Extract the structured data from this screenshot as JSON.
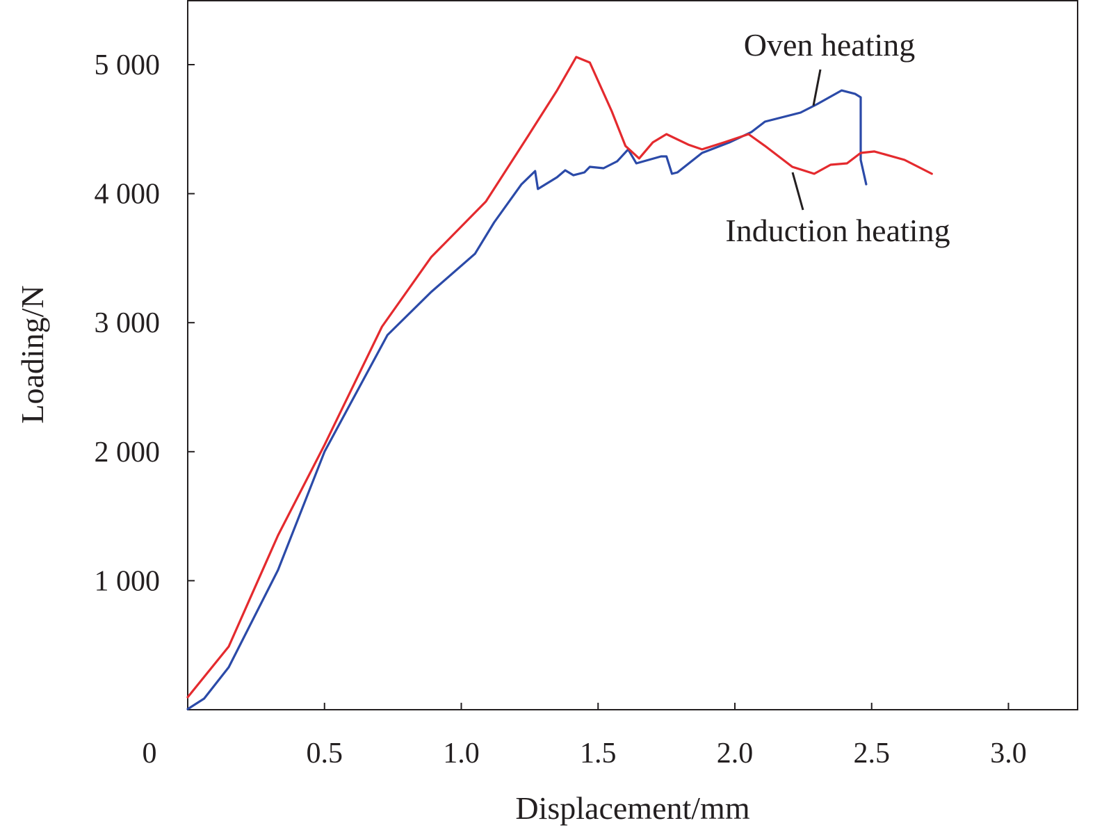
{
  "chart_data": {
    "type": "line",
    "title": "",
    "xlabel": "Displacement/mm",
    "ylabel": "Loading/N",
    "xlim": [
      0,
      3.25
    ],
    "ylim": [
      0,
      5500
    ],
    "origin_label": "0",
    "x_ticks": [
      0.5,
      1.0,
      1.5,
      2.0,
      2.5,
      3.0
    ],
    "x_tick_labels": [
      "0.5",
      "1.0",
      "1.5",
      "2.0",
      "2.5",
      "3.0"
    ],
    "y_ticks": [
      1000,
      2000,
      3000,
      4000,
      5000
    ],
    "y_tick_labels": [
      "1 000",
      "2 000",
      "3 000",
      "4 000",
      "5 000"
    ],
    "grid": false,
    "series": [
      {
        "name": "Oven heating",
        "color": "#2b4aa8",
        "label_anchor": [
          2.3,
          4693
        ],
        "x": [
          0,
          0.06,
          0.15,
          0.33,
          0.5,
          0.73,
          0.89,
          1.05,
          1.12,
          1.22,
          1.27,
          1.28,
          1.35,
          1.38,
          1.41,
          1.45,
          1.47,
          1.52,
          1.57,
          1.61,
          1.64,
          1.73,
          1.75,
          1.77,
          1.79,
          1.88,
          1.98,
          2.06,
          2.11,
          2.24,
          2.3,
          2.39,
          2.44,
          2.46,
          2.46,
          2.48
        ],
        "y": [
          5,
          86,
          329,
          1083,
          2000,
          2904,
          3238,
          3534,
          3777,
          4073,
          4175,
          4036,
          4127,
          4181,
          4143,
          4165,
          4208,
          4197,
          4251,
          4343,
          4235,
          4289,
          4289,
          4154,
          4165,
          4316,
          4397,
          4477,
          4558,
          4628,
          4693,
          4800,
          4773,
          4747,
          4262,
          4073
        ]
      },
      {
        "name": "Induction heating",
        "color": "#e42a2e",
        "label_anchor": [
          2.21,
          4208
        ],
        "x": [
          0,
          0.15,
          0.33,
          0.5,
          0.71,
          0.89,
          1.09,
          1.245,
          1.35,
          1.42,
          1.47,
          1.55,
          1.6,
          1.65,
          1.7,
          1.75,
          1.83,
          1.88,
          1.96,
          2.05,
          2.11,
          2.21,
          2.29,
          2.35,
          2.41,
          2.46,
          2.51,
          2.62,
          2.72
        ],
        "y": [
          97,
          490,
          1352,
          2053,
          2969,
          3508,
          3939,
          4450,
          4800,
          5059,
          5016,
          4639,
          4370,
          4273,
          4397,
          4461,
          4380,
          4343,
          4397,
          4461,
          4370,
          4208,
          4154,
          4224,
          4235,
          4316,
          4327,
          4262,
          4154
        ]
      }
    ]
  }
}
